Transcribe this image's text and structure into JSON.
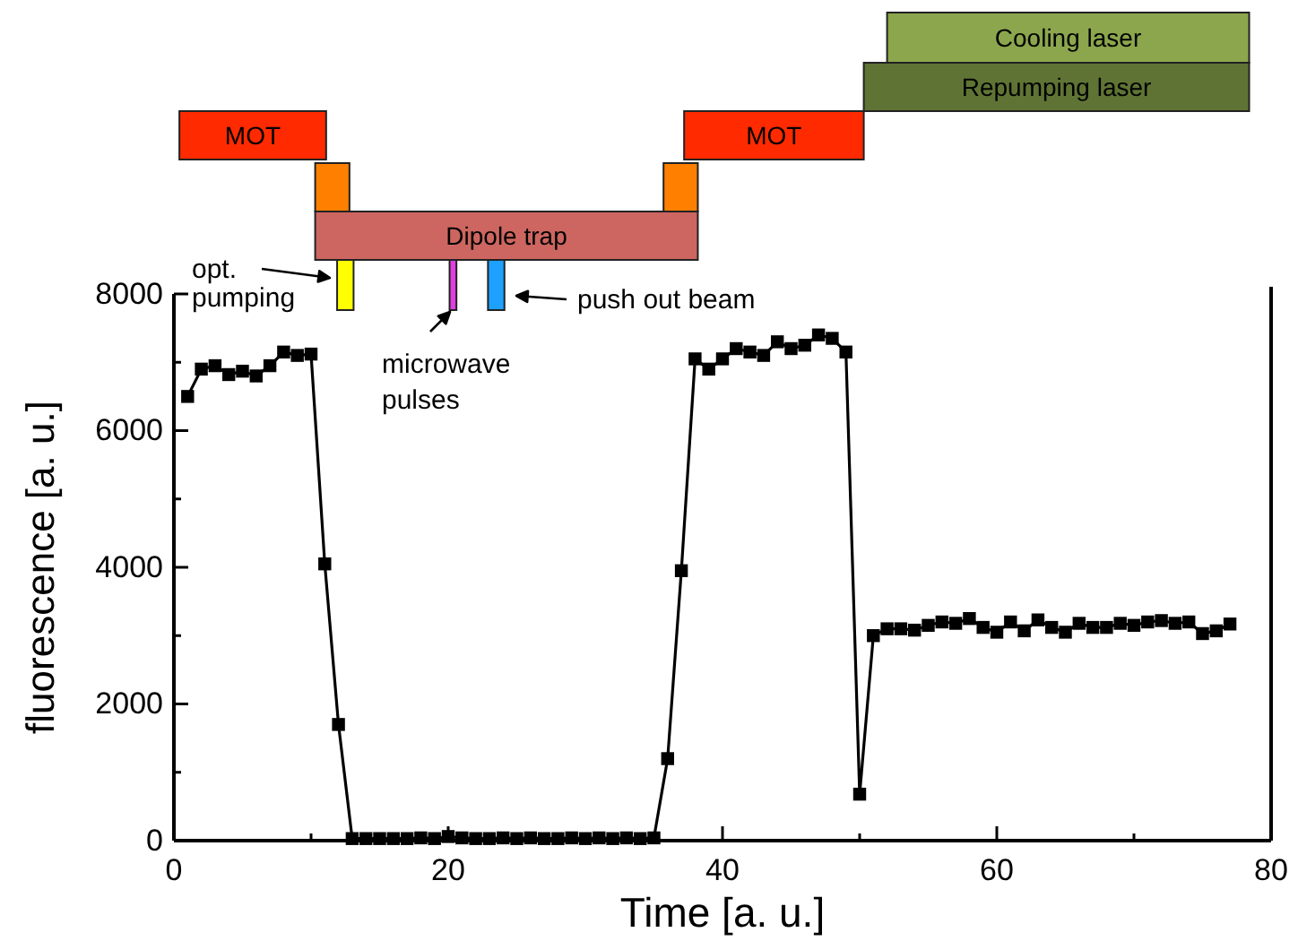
{
  "chart_data": {
    "type": "line",
    "xlabel": "Time [a. u.]",
    "ylabel": "fluorescence [a. u.]",
    "x": [
      1,
      2,
      3,
      4,
      5,
      6,
      7,
      8,
      9,
      10,
      11,
      12,
      13,
      14,
      15,
      16,
      17,
      18,
      19,
      20,
      21,
      22,
      23,
      24,
      25,
      26,
      27,
      28,
      29,
      30,
      31,
      32,
      33,
      34,
      35,
      36,
      37,
      38,
      39,
      40,
      41,
      42,
      43,
      44,
      45,
      46,
      47,
      48,
      49,
      50,
      51,
      52,
      53,
      54,
      55,
      56,
      57,
      58,
      59,
      60,
      61,
      62,
      63,
      64,
      65,
      66,
      67,
      68,
      69,
      70,
      71,
      72,
      73,
      74,
      75,
      76,
      77
    ],
    "series": [
      {
        "color": "#000000",
        "values": [
          6500,
          6900,
          6950,
          6820,
          6870,
          6800,
          6950,
          7150,
          7100,
          7120,
          4050,
          1700,
          30,
          30,
          30,
          30,
          30,
          40,
          30,
          60,
          40,
          30,
          30,
          40,
          30,
          40,
          30,
          30,
          40,
          30,
          40,
          30,
          40,
          30,
          40,
          1200,
          3950,
          7050,
          6900,
          7050,
          7200,
          7150,
          7100,
          7300,
          7200,
          7250,
          7400,
          7350,
          7150,
          680,
          3000,
          3100,
          3100,
          3080,
          3150,
          3200,
          3180,
          3250,
          3120,
          3050,
          3200,
          3070,
          3230,
          3120,
          3050,
          3180,
          3120,
          3120,
          3180,
          3150,
          3200,
          3220,
          3180,
          3200,
          3030,
          3070,
          3170
        ]
      }
    ],
    "xlim": [
      0,
      80
    ],
    "xticks": [
      0,
      20,
      40,
      60,
      80
    ],
    "ylim": [
      0,
      8000
    ],
    "yticks": [
      0,
      2000,
      4000,
      6000,
      8000
    ],
    "marker": "square",
    "line_style": "solid",
    "grid": false,
    "annotations": [
      "MOT",
      "Dipole trap",
      "MOT",
      "Repumping laser",
      "Cooling laser",
      "opt. pumping",
      "microwave pulses",
      "push out beam"
    ]
  }
}
